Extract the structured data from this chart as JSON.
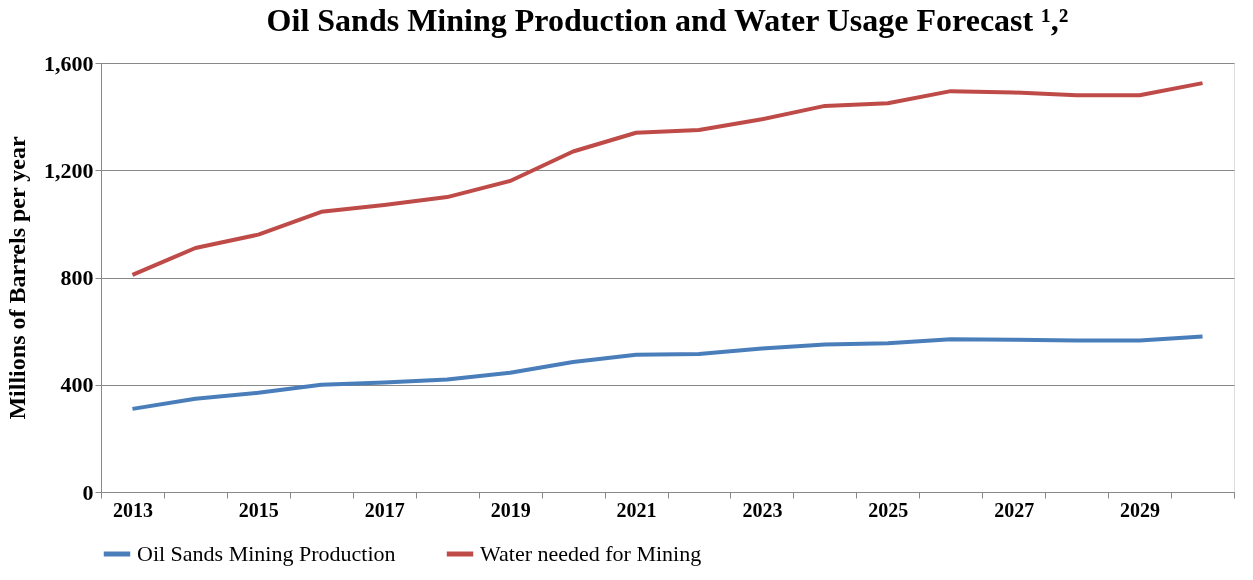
{
  "chart_data": {
    "type": "line",
    "title": "Oil Sands Mining Production and Water Usage Forecast ¹,²",
    "ylabel": "Millions of Barrels per year",
    "categories": [
      "2013",
      null,
      "2015",
      null,
      "2017",
      null,
      "2019",
      null,
      "2021",
      null,
      "2023",
      null,
      "2025",
      null,
      "2027",
      null,
      "2029",
      null
    ],
    "series": [
      {
        "name": "Oil Sands Mining Production",
        "color": "#4a7ebb",
        "values": [
          310,
          348,
          370,
          400,
          408,
          420,
          445,
          485,
          512,
          515,
          535,
          550,
          555,
          570,
          568,
          565,
          565,
          580
        ]
      },
      {
        "name": "Water needed for Mining",
        "color": "#be4b48",
        "values": [
          810,
          910,
          960,
          1045,
          1070,
          1100,
          1160,
          1270,
          1340,
          1350,
          1390,
          1440,
          1450,
          1495,
          1490,
          1480,
          1480,
          1525
        ]
      }
    ],
    "ylim": [
      0,
      1600
    ],
    "yticks": [
      {
        "value": 0,
        "label": "0"
      },
      {
        "value": 400,
        "label": "400"
      },
      {
        "value": 800,
        "label": "800"
      },
      {
        "value": 1200,
        "label": "1,200"
      },
      {
        "value": 1600,
        "label": "1,600"
      }
    ],
    "grid": "y",
    "legend": "bottom",
    "marker": "none",
    "line_style": "solid"
  }
}
